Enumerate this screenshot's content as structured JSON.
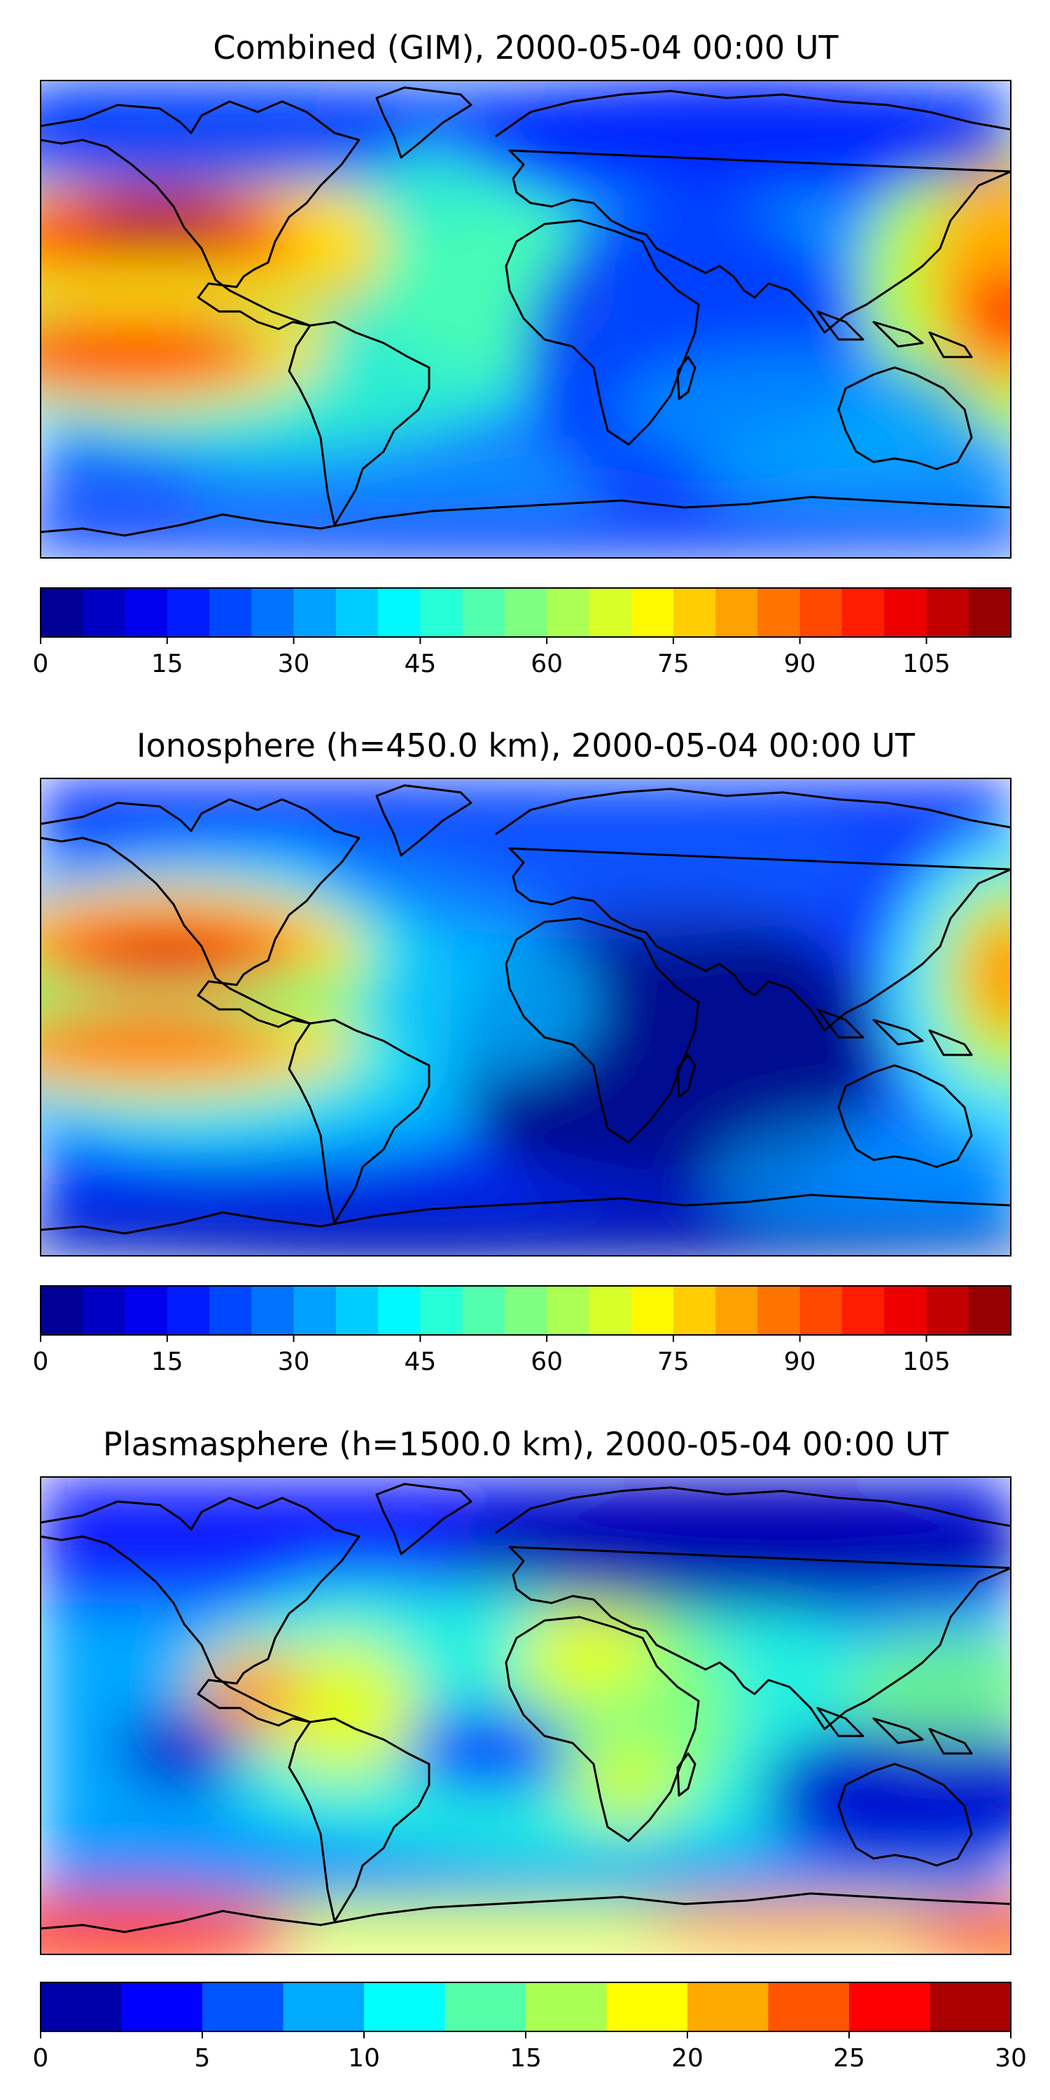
{
  "panels": [
    {
      "title": "Combined (GIM), 2000-05-04 00:00 UT",
      "colorbar": {
        "ticks": [
          "0",
          "15",
          "30",
          "45",
          "60",
          "75",
          "90",
          "105"
        ],
        "min": 0,
        "max": 115,
        "levels": 23,
        "colormap": "jet"
      }
    },
    {
      "title": "Ionosphere  (h=450.0 km), 2000-05-04 00:00 UT",
      "colorbar": {
        "ticks": [
          "0",
          "15",
          "30",
          "45",
          "60",
          "75",
          "90",
          "105"
        ],
        "min": 0,
        "max": 115,
        "levels": 23,
        "colormap": "jet"
      }
    },
    {
      "title": "Plasmasphere (h=1500.0 km), 2000-05-04 00:00 UT",
      "colorbar": {
        "ticks": [
          "0",
          "5",
          "10",
          "15",
          "20",
          "25",
          "30"
        ],
        "min": 0,
        "max": 30,
        "levels": 12,
        "colormap": "jet"
      }
    }
  ]
}
